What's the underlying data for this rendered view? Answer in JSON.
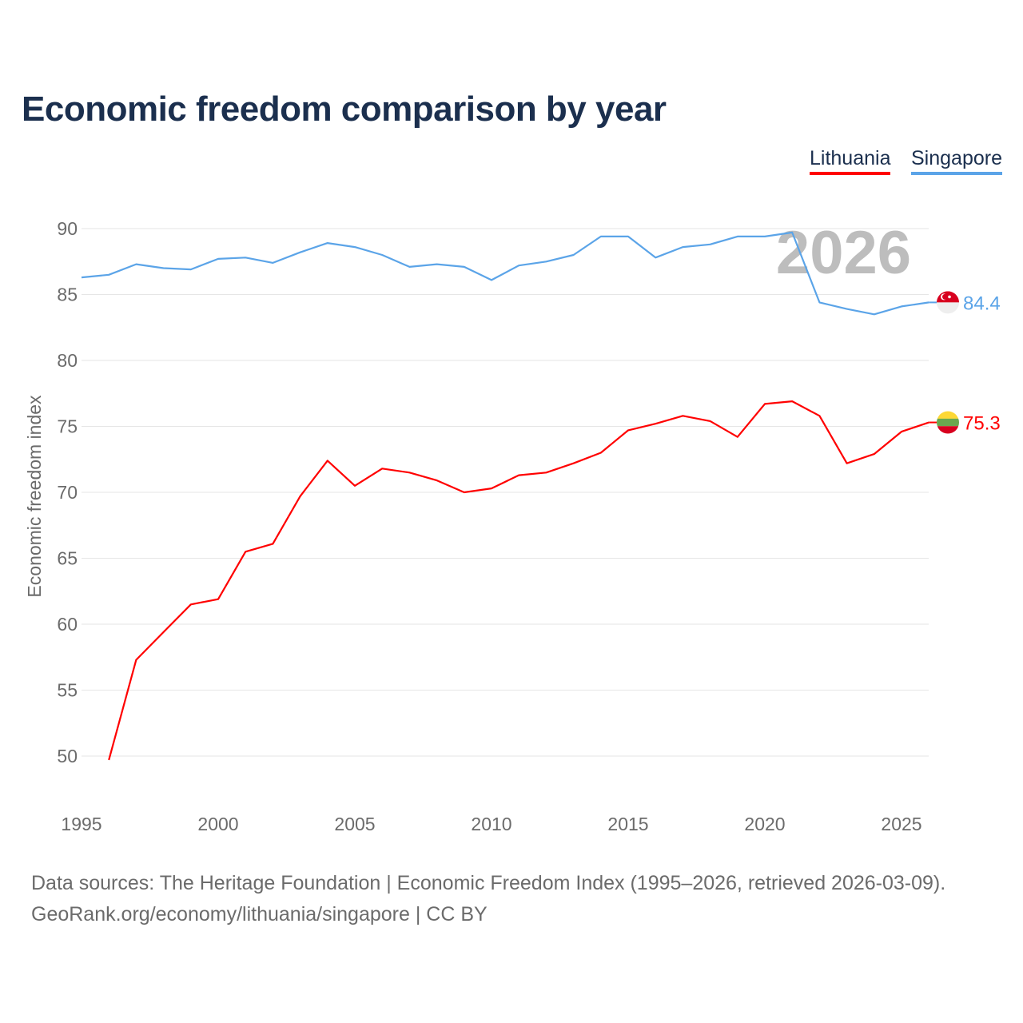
{
  "chart_data": {
    "type": "line",
    "title": "Economic freedom comparison by year",
    "xlabel": "",
    "ylabel": "Economic freedom index",
    "xlim": [
      1995,
      2026
    ],
    "ylim": [
      47,
      93
    ],
    "xticks": [
      1995,
      2000,
      2005,
      2010,
      2015,
      2020,
      2025
    ],
    "yticks": [
      50,
      55,
      60,
      65,
      70,
      75,
      80,
      85,
      90
    ],
    "grid": true,
    "legend_position": "top-right",
    "watermark_year": "2026",
    "series": [
      {
        "name": "Lithuania",
        "color": "#ff0000",
        "end_label": "75.3",
        "flag": "lithuania-flag",
        "x": [
          1996,
          1997,
          1998,
          1999,
          2000,
          2001,
          2002,
          2003,
          2004,
          2005,
          2006,
          2007,
          2008,
          2009,
          2010,
          2011,
          2012,
          2013,
          2014,
          2015,
          2016,
          2017,
          2018,
          2019,
          2020,
          2021,
          2022,
          2023,
          2024,
          2025,
          2026
        ],
        "values": [
          49.7,
          57.3,
          59.4,
          61.5,
          61.9,
          65.5,
          66.1,
          69.7,
          72.4,
          70.5,
          71.8,
          71.5,
          70.9,
          70.0,
          70.3,
          71.3,
          71.5,
          72.2,
          73.0,
          74.7,
          75.2,
          75.8,
          75.4,
          74.2,
          76.7,
          76.9,
          75.8,
          72.2,
          72.9,
          74.6,
          75.3
        ]
      },
      {
        "name": "Singapore",
        "color": "#5ba4e8",
        "end_label": "84.4",
        "flag": "singapore-flag",
        "x": [
          1995,
          1996,
          1997,
          1998,
          1999,
          2000,
          2001,
          2002,
          2003,
          2004,
          2005,
          2006,
          2007,
          2008,
          2009,
          2010,
          2011,
          2012,
          2013,
          2014,
          2015,
          2016,
          2017,
          2018,
          2019,
          2020,
          2021,
          2022,
          2023,
          2024,
          2025,
          2026
        ],
        "values": [
          86.3,
          86.5,
          87.3,
          87.0,
          86.9,
          87.7,
          87.8,
          87.4,
          88.2,
          88.9,
          88.6,
          88.0,
          87.1,
          87.3,
          87.1,
          86.1,
          87.2,
          87.5,
          88.0,
          89.4,
          89.4,
          87.8,
          88.6,
          88.8,
          89.4,
          89.4,
          89.7,
          84.4,
          83.9,
          83.5,
          84.1,
          84.4
        ]
      }
    ]
  },
  "source": {
    "line1": "Data sources: The Heritage Foundation | Economic Freedom Index (1995–2026, retrieved 2026-03-09).",
    "line2": "GeoRank.org/economy/lithuania/singapore | CC BY"
  }
}
